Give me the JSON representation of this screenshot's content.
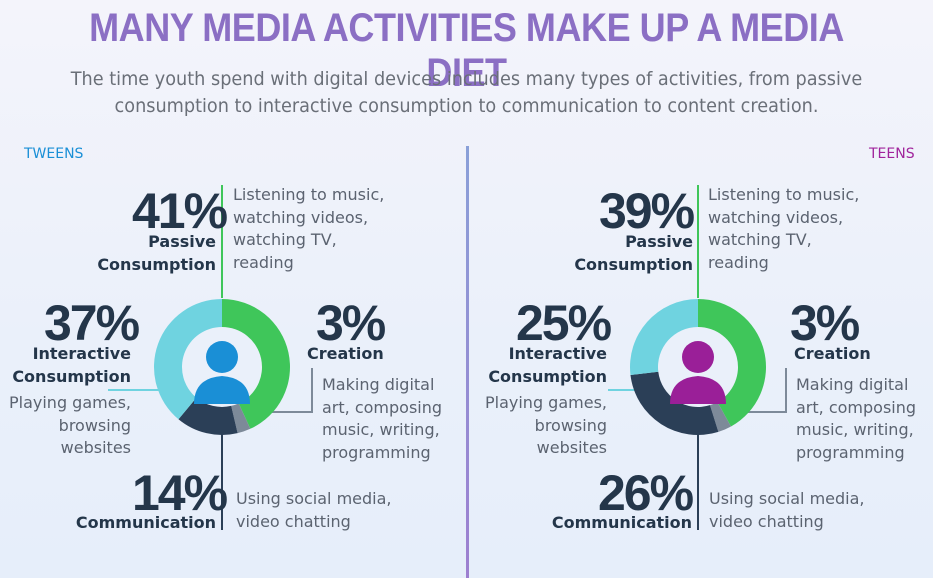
{
  "title": "MANY MEDIA ACTIVITIES MAKE UP A MEDIA DIET",
  "subtitle_line1": "The time youth spend with digital devices includes many types of activities, from passive",
  "subtitle_line2": "consumption to interactive consumption to communication to content creation.",
  "colors": {
    "passive": "#3fc65a",
    "creation": "#7d8a99",
    "communication": "#2b3f57",
    "interactive": "#6fd3e0",
    "tweens_person": "#1a8fd6",
    "teens_person": "#9a1f98",
    "tweens_label": "#1a8fd6",
    "teens_label": "#a0249c"
  },
  "chart_data": [
    {
      "type": "pie",
      "group": "TWEENS",
      "categories": [
        "Passive Consumption",
        "Creation",
        "Communication",
        "Interactive Consumption"
      ],
      "values": [
        41,
        3,
        14,
        37
      ],
      "segments": [
        {
          "pct": "41%",
          "name_line1": "Passive",
          "name_line2": "Consumption",
          "desc_lines": [
            "Listening to music,",
            "watching videos,",
            "watching TV,",
            "reading"
          ]
        },
        {
          "pct": "3%",
          "name_line1": "Creation",
          "name_line2": "",
          "desc_lines": [
            "Making digital",
            "art, composing",
            "music, writing,",
            "programming"
          ]
        },
        {
          "pct": "14%",
          "name_line1": "Communication",
          "name_line2": "",
          "desc_lines": [
            "Using social media,",
            "video chatting"
          ]
        },
        {
          "pct": "37%",
          "name_line1": "Interactive",
          "name_line2": "Consumption",
          "desc_lines": [
            "Playing games,",
            "browsing",
            "websites"
          ]
        }
      ]
    },
    {
      "type": "pie",
      "group": "TEENS",
      "categories": [
        "Passive Consumption",
        "Creation",
        "Communication",
        "Interactive Consumption"
      ],
      "values": [
        39,
        3,
        26,
        25
      ],
      "segments": [
        {
          "pct": "39%",
          "name_line1": "Passive",
          "name_line2": "Consumption",
          "desc_lines": [
            "Listening to music,",
            "watching videos,",
            "watching TV,",
            "reading"
          ]
        },
        {
          "pct": "3%",
          "name_line1": "Creation",
          "name_line2": "",
          "desc_lines": [
            "Making digital",
            "art, composing",
            "music, writing,",
            "programming"
          ]
        },
        {
          "pct": "26%",
          "name_line1": "Communication",
          "name_line2": "",
          "desc_lines": [
            "Using social media,",
            "video chatting"
          ]
        },
        {
          "pct": "25%",
          "name_line1": "Interactive",
          "name_line2": "Consumption",
          "desc_lines": [
            "Playing games,",
            "browsing",
            "websites"
          ]
        }
      ]
    }
  ]
}
